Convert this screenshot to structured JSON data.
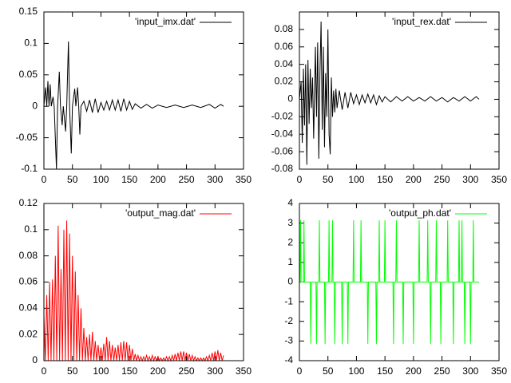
{
  "chart_data": [
    {
      "type": "line",
      "xlim": [
        0,
        350
      ],
      "xticks": [
        0,
        50,
        100,
        150,
        200,
        250,
        300,
        350
      ],
      "ylim": [
        -0.1,
        0.15
      ],
      "yticks": [
        -0.1,
        -0.05,
        0,
        0.05,
        0.1,
        0.15
      ],
      "x": [
        0,
        3,
        5,
        7,
        9,
        11,
        13,
        16,
        18,
        22,
        24,
        27,
        29,
        32,
        34,
        38,
        40,
        43,
        45,
        48,
        50,
        54,
        56,
        59,
        61,
        63,
        65,
        70,
        75,
        80,
        85,
        90,
        95,
        100,
        105,
        110,
        115,
        120,
        125,
        130,
        135,
        140,
        145,
        150,
        155,
        160,
        170,
        180,
        190,
        200,
        215,
        230,
        245,
        260,
        275,
        290,
        300,
        310,
        315
      ],
      "series": [
        {
          "name": "'input_imx.dat'",
          "color": "#000000",
          "values": [
            0,
            0.03,
            0,
            0.04,
            0,
            0.035,
            0,
            0.015,
            0,
            -0.1,
            0,
            0.055,
            0,
            -0.03,
            0,
            -0.04,
            0,
            0.103,
            0,
            -0.075,
            0,
            0.028,
            0,
            0.03,
            0,
            -0.045,
            0,
            0.008,
            -0.008,
            0.01,
            -0.01,
            0.012,
            -0.01,
            0.006,
            -0.006,
            0.008,
            -0.006,
            0.01,
            -0.006,
            0.01,
            -0.008,
            0.012,
            -0.006,
            0.008,
            -0.005,
            0.004,
            -0.003,
            0.003,
            -0.003,
            0.002,
            -0.002,
            0.002,
            -0.002,
            0.002,
            -0.002,
            0.003,
            -0.003,
            0.003,
            0
          ]
        }
      ]
    },
    {
      "type": "line",
      "xlim": [
        0,
        350
      ],
      "xticks": [
        0,
        50,
        100,
        150,
        200,
        250,
        300,
        350
      ],
      "ylim": [
        -0.08,
        0.1
      ],
      "yticks": [
        -0.08,
        -0.06,
        -0.04,
        -0.02,
        0,
        0.02,
        0.04,
        0.06,
        0.08
      ],
      "x": [
        0,
        3,
        5,
        7,
        9,
        11,
        13,
        15,
        17,
        19,
        21,
        23,
        25,
        28,
        30,
        32,
        34,
        36,
        38,
        40,
        42,
        44,
        46,
        48,
        50,
        52,
        54,
        56,
        58,
        60,
        62,
        64,
        66,
        70,
        75,
        80,
        85,
        90,
        95,
        100,
        105,
        110,
        115,
        120,
        125,
        130,
        135,
        140,
        145,
        150,
        160,
        170,
        180,
        190,
        200,
        210,
        220,
        230,
        240,
        250,
        260,
        270,
        280,
        290,
        300,
        310,
        315
      ],
      "series": [
        {
          "name": "'input_rex.dat'",
          "color": "#000000",
          "values": [
            0,
            0.02,
            -0.05,
            0.035,
            -0.03,
            0.04,
            -0.075,
            0.045,
            -0.028,
            0.035,
            -0.01,
            0.025,
            -0.045,
            0.06,
            -0.02,
            0.065,
            -0.068,
            0.03,
            0.089,
            -0.035,
            0.06,
            -0.055,
            0.03,
            -0.02,
            0.08,
            -0.04,
            -0.063,
            0.025,
            -0.02,
            0.01,
            -0.015,
            0.012,
            -0.01,
            0.01,
            -0.012,
            0.008,
            -0.01,
            0.008,
            -0.005,
            0.005,
            -0.006,
            0.005,
            -0.004,
            0.006,
            -0.004,
            0.005,
            -0.006,
            0.004,
            -0.003,
            0.003,
            -0.003,
            0.003,
            -0.002,
            0.003,
            -0.002,
            0.002,
            -0.002,
            0.003,
            -0.002,
            0.002,
            -0.003,
            0.002,
            -0.002,
            0.003,
            -0.002,
            0.003,
            0
          ]
        }
      ]
    },
    {
      "type": "line",
      "xlim": [
        0,
        350
      ],
      "xticks": [
        0,
        50,
        100,
        150,
        200,
        250,
        300,
        350
      ],
      "ylim": [
        0,
        0.12
      ],
      "yticks": [
        0,
        0.02,
        0.04,
        0.06,
        0.08,
        0.1,
        0.12
      ],
      "x": [
        0,
        2.5,
        5,
        7.5,
        10,
        12.5,
        15,
        17.5,
        20,
        22.5,
        25,
        27.5,
        30,
        32.5,
        35,
        37.5,
        40,
        42.5,
        45,
        47.5,
        50,
        52.5,
        55,
        57.5,
        60,
        62.5,
        65,
        67.5,
        70,
        72.5,
        75,
        77.5,
        80,
        82.5,
        85,
        87.5,
        90,
        92.5,
        95,
        97.5,
        100,
        102.5,
        105,
        107.5,
        110,
        112.5,
        115,
        117.5,
        120,
        122.5,
        125,
        127.5,
        130,
        132.5,
        135,
        137.5,
        140,
        142.5,
        145,
        147.5,
        150,
        152.5,
        155,
        157.5,
        160,
        162.5,
        165,
        167.5,
        170,
        172.5,
        175,
        177.5,
        180,
        182.5,
        185,
        187.5,
        190,
        192.5,
        195,
        197.5,
        200,
        202.5,
        205,
        207.5,
        210,
        212.5,
        215,
        217.5,
        220,
        222.5,
        225,
        227.5,
        230,
        232.5,
        235,
        237.5,
        240,
        242.5,
        245,
        247.5,
        250,
        252.5,
        255,
        257.5,
        260,
        262.5,
        265,
        267.5,
        270,
        272.5,
        275,
        277.5,
        280,
        282.5,
        285,
        287.5,
        290,
        292.5,
        295,
        297.5,
        300,
        302.5,
        305,
        307.5,
        310,
        312.5,
        315
      ],
      "series": [
        {
          "name": "'output_mag.dat'",
          "color": "#ff0000",
          "values": [
            0.035,
            0,
            0.05,
            0,
            0.06,
            0,
            0.062,
            0,
            0.08,
            0,
            0.103,
            0,
            0.07,
            0,
            0.1,
            0,
            0.107,
            0,
            0.097,
            0,
            0.08,
            0,
            0.068,
            0,
            0.05,
            0,
            0.04,
            0,
            0.025,
            0,
            0.018,
            0,
            0.02,
            0,
            0.022,
            0,
            0.015,
            0,
            0.012,
            0,
            0.01,
            0,
            0.013,
            0,
            0.018,
            0,
            0.015,
            0,
            0.012,
            0,
            0.01,
            0,
            0.012,
            0,
            0.014,
            0,
            0.015,
            0,
            0.014,
            0,
            0.012,
            0,
            0.009,
            0,
            0.005,
            0,
            0.004,
            0,
            0.003,
            0,
            0.003,
            0,
            0.004,
            0,
            0.003,
            0,
            0.004,
            0,
            0.003,
            0,
            0.003,
            0,
            0.002,
            0,
            0.002,
            0,
            0.003,
            0,
            0.003,
            0,
            0.004,
            0,
            0.005,
            0,
            0.006,
            0,
            0.007,
            0,
            0.007,
            0,
            0.006,
            0,
            0.005,
            0,
            0.004,
            0,
            0.003,
            0,
            0.002,
            0,
            0.002,
            0,
            0.002,
            0,
            0.003,
            0,
            0.004,
            0,
            0.006,
            0,
            0.007,
            0,
            0.008,
            0,
            0.006,
            0,
            0.004
          ]
        }
      ]
    },
    {
      "type": "line",
      "xlim": [
        0,
        350
      ],
      "xticks": [
        0,
        50,
        100,
        150,
        200,
        250,
        300,
        350
      ],
      "ylim": [
        -4,
        4
      ],
      "yticks": [
        -4,
        -3,
        -2,
        -1,
        0,
        1,
        2,
        3,
        4
      ],
      "x": [
        0,
        1,
        2,
        3,
        7,
        8,
        9,
        19,
        20,
        21,
        29,
        30,
        31,
        34,
        35,
        36,
        44,
        45,
        46,
        51,
        52,
        53,
        57,
        58,
        59,
        61,
        62,
        63,
        74,
        75,
        76,
        84,
        85,
        86,
        94,
        95,
        96,
        107,
        108,
        109,
        119,
        120,
        121,
        134,
        135,
        136,
        139,
        140,
        141,
        149,
        150,
        151,
        164,
        165,
        166,
        169,
        170,
        171,
        181,
        182,
        183,
        199,
        200,
        201,
        209,
        210,
        211,
        224,
        225,
        226,
        229,
        230,
        231,
        239,
        240,
        241,
        247,
        248,
        249,
        259,
        260,
        261,
        269,
        270,
        271,
        279,
        280,
        281,
        284,
        285,
        286,
        289,
        290,
        291,
        299,
        300,
        301,
        304,
        305,
        306,
        315
      ],
      "series": [
        {
          "name": "'output_ph.dat'",
          "color": "#00ff00",
          "values": [
            0,
            0,
            3.14,
            0,
            0,
            3.14,
            0,
            0,
            -3.14,
            0,
            0,
            -3.14,
            0,
            0,
            3.14,
            0,
            0,
            -3.14,
            0,
            0,
            3.14,
            0,
            0,
            3.14,
            0,
            0,
            -3.14,
            0,
            0,
            -3.14,
            0,
            0,
            -3.14,
            0,
            0,
            3.14,
            0,
            0,
            3.14,
            0,
            0,
            -3.14,
            0,
            0,
            -3.14,
            0,
            0,
            3.14,
            0,
            0,
            3.14,
            0,
            0,
            -3.14,
            0,
            0,
            3.14,
            0,
            0,
            -3.14,
            0,
            0,
            -3.14,
            0,
            0,
            3.14,
            0,
            0,
            3.14,
            0,
            0,
            -3.14,
            0,
            0,
            3.14,
            0,
            0,
            -3.14,
            0,
            0,
            3.14,
            0,
            0,
            -3.14,
            0,
            0,
            3.14,
            0,
            0,
            3.14,
            0,
            0,
            -3.14,
            0,
            0,
            -3.14,
            0,
            0,
            3.14,
            0,
            0
          ]
        }
      ]
    }
  ]
}
